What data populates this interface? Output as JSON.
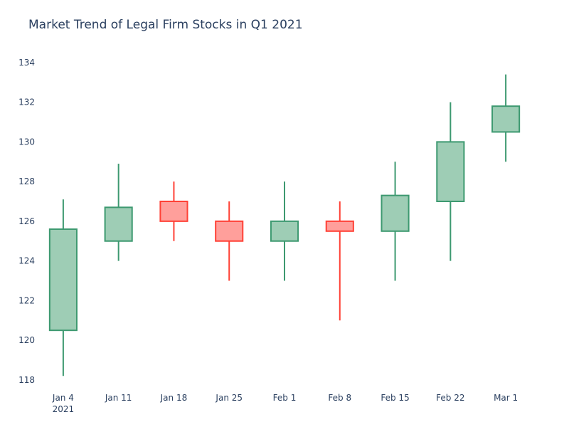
{
  "chart_data": {
    "type": "candlestick",
    "title": "Market Trend of Legal Firm Stocks in Q1 2021",
    "xlabel": "",
    "ylabel": "",
    "ylim": [
      117.6,
      135.0
    ],
    "yticks": [
      118,
      120,
      122,
      124,
      126,
      128,
      130,
      132,
      134
    ],
    "categories": [
      "Jan 4",
      "Jan 11",
      "Jan 18",
      "Jan 25",
      "Feb 1",
      "Feb 8",
      "Feb 15",
      "Feb 22",
      "Mar 1"
    ],
    "x_year_label": "2021",
    "grid": false,
    "increasing_color": "#3d9970",
    "increasing_fill": "#9ecdb5",
    "decreasing_color": "#ff4136",
    "decreasing_fill": "#ff9f9b",
    "candles": [
      {
        "date": "Jan 4",
        "open": 120.5,
        "high": 127.1,
        "low": 118.2,
        "close": 125.6
      },
      {
        "date": "Jan 11",
        "open": 125.0,
        "high": 128.9,
        "low": 124.0,
        "close": 126.7
      },
      {
        "date": "Jan 18",
        "open": 127.0,
        "high": 128.0,
        "low": 125.0,
        "close": 126.0
      },
      {
        "date": "Jan 25",
        "open": 126.0,
        "high": 127.0,
        "low": 123.0,
        "close": 125.0
      },
      {
        "date": "Feb 1",
        "open": 125.0,
        "high": 128.0,
        "low": 123.0,
        "close": 126.0
      },
      {
        "date": "Feb 8",
        "open": 126.0,
        "high": 127.0,
        "low": 121.0,
        "close": 125.5
      },
      {
        "date": "Feb 15",
        "open": 125.5,
        "high": 129.0,
        "low": 123.0,
        "close": 127.3
      },
      {
        "date": "Feb 22",
        "open": 127.0,
        "high": 132.0,
        "low": 124.0,
        "close": 130.0
      },
      {
        "date": "Mar 1",
        "open": 130.5,
        "high": 133.4,
        "low": 129.0,
        "close": 131.8
      }
    ]
  }
}
